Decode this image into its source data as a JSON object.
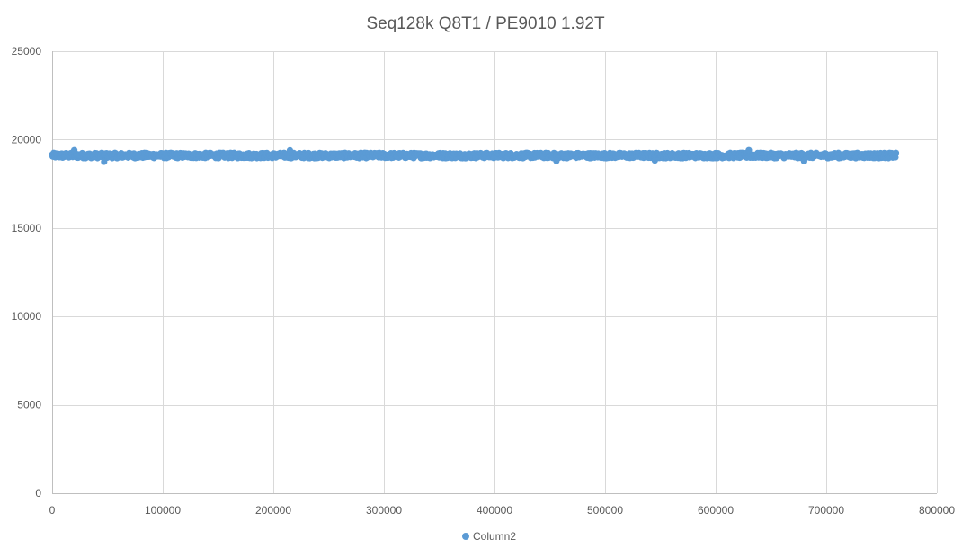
{
  "chart_data": {
    "type": "scatter",
    "title": "Seq128k Q8T1 / PE9010 1.92T",
    "xlabel": "",
    "ylabel": "",
    "xlim": [
      0,
      800000
    ],
    "ylim": [
      0,
      25000
    ],
    "x_ticks": [
      0,
      100000,
      200000,
      300000,
      400000,
      500000,
      600000,
      700000,
      800000
    ],
    "y_ticks": [
      0,
      5000,
      10000,
      15000,
      20000,
      25000
    ],
    "x_tick_labels": [
      "0",
      "100000",
      "200000",
      "300000",
      "400000",
      "500000",
      "600000",
      "700000",
      "800000"
    ],
    "y_tick_labels": [
      "0",
      "5000",
      "10000",
      "15000",
      "20000",
      "25000"
    ],
    "grid": true,
    "legend_position": "bottom",
    "series": [
      {
        "name": "Column2",
        "color": "#5b9bd5",
        "x_range": [
          0,
          763000
        ],
        "y_center": 19100,
        "y_spread": 150,
        "min_outliers": [
          [
            47000,
            18750
          ],
          [
            456000,
            18800
          ],
          [
            545000,
            18820
          ],
          [
            680000,
            18780
          ]
        ],
        "max_outliers": [
          [
            20000,
            19400
          ],
          [
            215000,
            19390
          ],
          [
            630000,
            19400
          ]
        ]
      }
    ]
  }
}
